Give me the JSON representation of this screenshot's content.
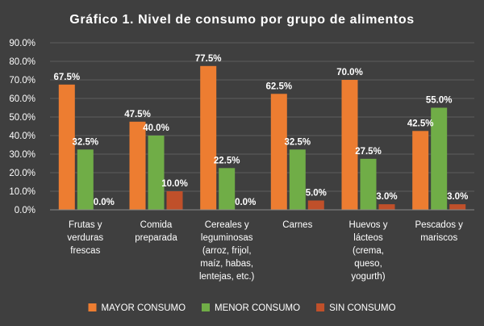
{
  "chart_data": {
    "type": "bar",
    "title": "Gráfico 1. Nivel de consumo por grupo de alimentos",
    "xlabel": "",
    "ylabel": "",
    "ylim": [
      0,
      90
    ],
    "ytick_labels": [
      "0.0%",
      "10.0%",
      "20.0%",
      "30.0%",
      "40.0%",
      "50.0%",
      "60.0%",
      "70.0%",
      "80.0%",
      "90.0%"
    ],
    "categories": [
      [
        "Frutas y",
        "verduras",
        "frescas"
      ],
      [
        "Comida",
        "preparada"
      ],
      [
        "Cereales y",
        "leguminosas",
        "(arroz, frijol,",
        "maíz, habas,",
        "lentejas, etc.)"
      ],
      [
        "Carnes"
      ],
      [
        "Huevos y",
        "lácteos",
        "(crema,",
        "queso,",
        "yogurth)"
      ],
      [
        "Pescados y",
        "mariscos"
      ]
    ],
    "series": [
      {
        "name": "MAYOR CONSUMO",
        "color": "#ed7d31",
        "values": [
          67.5,
          47.5,
          77.5,
          62.5,
          70.0,
          42.5
        ],
        "labels": [
          "67.5%",
          "47.5%",
          "77.5%",
          "62.5%",
          "70.0%",
          "42.5%"
        ]
      },
      {
        "name": "MENOR CONSUMO",
        "color": "#70ad47",
        "values": [
          32.5,
          40.0,
          22.5,
          32.5,
          27.5,
          55.0
        ],
        "labels": [
          "32.5%",
          "40.0%",
          "22.5%",
          "32.5%",
          "27.5%",
          "55.0%"
        ]
      },
      {
        "name": "SIN CONSUMO",
        "color": "#c0502a",
        "values": [
          0.0,
          10.0,
          0.0,
          5.0,
          3.0,
          3.0
        ],
        "labels": [
          "0.0%",
          "10.0%",
          "0.0%",
          "5.0%",
          "3.0%",
          "3.0%"
        ]
      }
    ],
    "grid": true,
    "legend": "bottom"
  }
}
